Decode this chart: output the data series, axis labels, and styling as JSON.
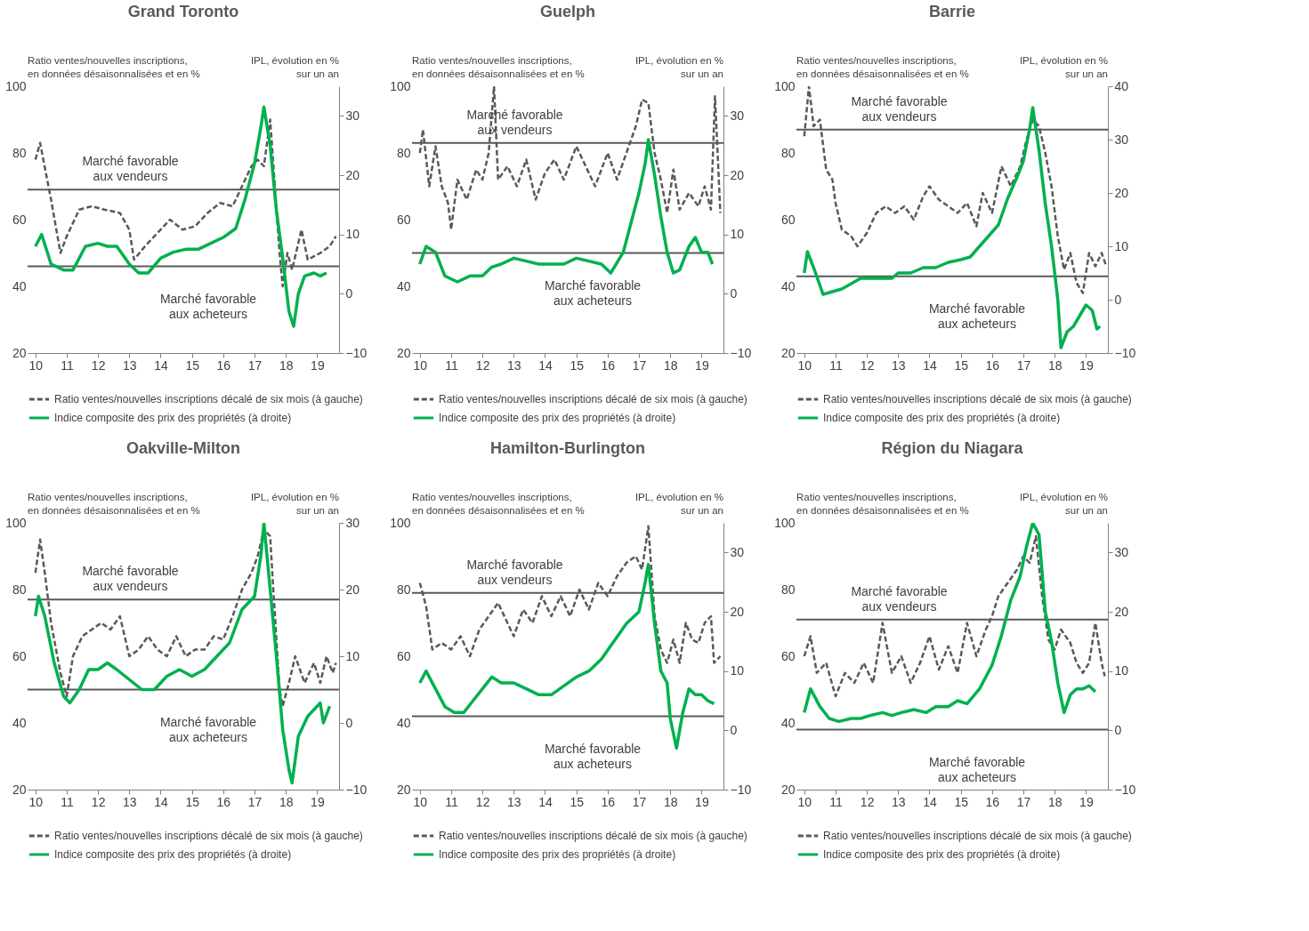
{
  "chart_data": [
    {
      "type": "line",
      "title": "Grand Toronto",
      "ylabel": "Ratio ventes/nouvelles inscriptions, en données désaisonnalisées et en %",
      "y2label": "IPL, évolution en % sur un an",
      "xlim": [
        9.75,
        19.7
      ],
      "xticks": [
        10,
        11,
        12,
        13,
        14,
        15,
        16,
        17,
        18,
        19
      ],
      "ylim": [
        20,
        100
      ],
      "yticks": [
        20,
        40,
        60,
        80,
        100
      ],
      "y2lim": [
        -10,
        35
      ],
      "y2ticks": [
        -10,
        0,
        10,
        20,
        30
      ],
      "legend": "bottom",
      "ref_lines": [
        {
          "axis": "y",
          "value": 69,
          "label": "Marché favorable aux vendeurs",
          "color": "#595959"
        },
        {
          "axis": "y",
          "value": 46,
          "label": "Marché favorable aux acheteurs",
          "color": "#595959"
        }
      ],
      "series": [
        {
          "name": "Ratio ventes/nouvelles inscriptions décalé de six mois (à gauche)",
          "color": "#595959",
          "line_style": "dashed",
          "x": [
            10.0,
            10.15,
            10.5,
            10.8,
            11.0,
            11.4,
            11.8,
            12.2,
            12.7,
            13.0,
            13.15,
            13.5,
            13.9,
            14.3,
            14.7,
            15.1,
            15.5,
            15.9,
            16.3,
            16.6,
            16.9,
            17.1,
            17.3,
            17.5,
            17.65,
            17.8,
            17.9,
            18.05,
            18.2,
            18.5,
            18.7,
            19.1,
            19.4,
            19.6
          ],
          "values": [
            78,
            83,
            66,
            50,
            55,
            63,
            64,
            63,
            62,
            57,
            48,
            52,
            56,
            60,
            57,
            58,
            62,
            65,
            64,
            70,
            76,
            78,
            76,
            90,
            70,
            50,
            40,
            50,
            45,
            57,
            48,
            50,
            52,
            55
          ]
        },
        {
          "name": "Indice composite des prix des propriétés (à droite)",
          "color": "#00b050",
          "line_style": "solid",
          "axis": "y2",
          "x": [
            10.0,
            10.2,
            10.5,
            10.9,
            11.2,
            11.6,
            12.0,
            12.3,
            12.6,
            13.0,
            13.3,
            13.6,
            14.0,
            14.4,
            14.8,
            15.2,
            15.6,
            16.0,
            16.4,
            16.7,
            17.0,
            17.2,
            17.3,
            17.5,
            17.7,
            17.9,
            18.1,
            18.25,
            18.4,
            18.6,
            18.9,
            19.1,
            19.3
          ],
          "values": [
            8,
            10,
            5,
            4,
            4,
            8,
            8.5,
            8,
            8,
            5,
            3.5,
            3.5,
            6,
            7,
            7.5,
            7.5,
            8.5,
            9.5,
            11,
            16,
            22,
            28,
            31.5,
            25,
            14,
            6,
            -3,
            -5.5,
            0,
            3,
            3.5,
            3,
            3.5
          ]
        }
      ]
    },
    {
      "type": "line",
      "title": "Guelph",
      "ylabel": "Ratio ventes/nouvelles inscriptions, en données désaisonnalisées et en %",
      "y2label": "IPL, évolution en % sur un an",
      "xlim": [
        9.75,
        19.7
      ],
      "xticks": [
        10,
        11,
        12,
        13,
        14,
        15,
        16,
        17,
        18,
        19
      ],
      "ylim": [
        20,
        100
      ],
      "yticks": [
        20,
        40,
        60,
        80,
        100
      ],
      "y2lim": [
        -10,
        35
      ],
      "y2ticks": [
        -10,
        0,
        10,
        20,
        30
      ],
      "legend": "bottom",
      "ref_lines": [
        {
          "axis": "y",
          "value": 83,
          "label": "Marché favorable aux vendeurs",
          "color": "#595959"
        },
        {
          "axis": "y",
          "value": 50,
          "label": "Marché favorable aux acheteurs",
          "color": "#595959"
        }
      ],
      "series": [
        {
          "name": "Ratio ventes/nouvelles inscriptions décalé de six mois (à gauche)",
          "color": "#595959",
          "line_style": "dashed",
          "x": [
            10.0,
            10.1,
            10.3,
            10.5,
            10.7,
            10.9,
            11.0,
            11.2,
            11.5,
            11.8,
            12.0,
            12.2,
            12.37,
            12.5,
            12.8,
            13.1,
            13.4,
            13.7,
            14.0,
            14.3,
            14.6,
            15.0,
            15.3,
            15.6,
            16.0,
            16.3,
            16.6,
            16.9,
            17.1,
            17.3,
            17.5,
            17.7,
            17.9,
            18.1,
            18.3,
            18.6,
            18.9,
            19.1,
            19.3,
            19.43,
            19.6
          ],
          "values": [
            80,
            87,
            70,
            82,
            70,
            65,
            57,
            72,
            66,
            75,
            72,
            80,
            100,
            72,
            76,
            70,
            78,
            66,
            74,
            78,
            72,
            82,
            76,
            70,
            80,
            72,
            80,
            88,
            96,
            95,
            80,
            72,
            62,
            75,
            63,
            68,
            64,
            70,
            63,
            97,
            62
          ]
        },
        {
          "name": "Indice composite des prix des propriétés (à droite)",
          "color": "#00b050",
          "line_style": "solid",
          "axis": "y2",
          "x": [
            10.0,
            10.2,
            10.5,
            10.8,
            11.2,
            11.6,
            12.0,
            12.3,
            12.6,
            13.0,
            13.4,
            13.8,
            14.2,
            14.6,
            15.0,
            15.4,
            15.8,
            16.1,
            16.5,
            16.8,
            17.0,
            17.2,
            17.3,
            17.5,
            17.7,
            17.9,
            18.1,
            18.3,
            18.6,
            18.8,
            19.0,
            19.2,
            19.35
          ],
          "values": [
            5,
            8,
            7,
            3,
            2,
            3,
            3,
            4.5,
            5,
            6,
            5.5,
            5,
            5,
            5,
            6,
            5.5,
            5,
            3.5,
            7,
            13,
            17,
            22,
            26,
            20,
            13,
            7,
            3.5,
            4,
            8,
            9.5,
            7,
            7,
            5
          ]
        }
      ]
    },
    {
      "type": "line",
      "title": "Barrie",
      "ylabel": "Ratio ventes/nouvelles inscriptions, en données désaisonnalisées et en %",
      "y2label": "IPL, évolution en % sur un an",
      "xlim": [
        9.75,
        19.7
      ],
      "xticks": [
        10,
        11,
        12,
        13,
        14,
        15,
        16,
        17,
        18,
        19
      ],
      "ylim": [
        20,
        100
      ],
      "yticks": [
        20,
        40,
        60,
        80,
        100
      ],
      "y2lim": [
        -10,
        40
      ],
      "y2ticks": [
        -10,
        0,
        10,
        20,
        30,
        40
      ],
      "legend": "bottom",
      "ref_lines": [
        {
          "axis": "y",
          "value": 87,
          "label": "Marché favorable aux vendeurs",
          "color": "#595959"
        },
        {
          "axis": "y",
          "value": 43,
          "label": "Marché favorable aux acheteurs",
          "color": "#595959"
        }
      ],
      "series": [
        {
          "name": "Ratio ventes/nouvelles inscriptions décalé de six mois (à gauche)",
          "color": "#595959",
          "line_style": "dashed",
          "x": [
            10.0,
            10.15,
            10.3,
            10.5,
            10.7,
            10.9,
            11.0,
            11.2,
            11.5,
            11.7,
            12.0,
            12.3,
            12.6,
            12.9,
            13.2,
            13.5,
            13.8,
            14.0,
            14.3,
            14.6,
            14.9,
            15.2,
            15.5,
            15.7,
            16.0,
            16.3,
            16.6,
            16.9,
            17.1,
            17.3,
            17.5,
            17.7,
            17.9,
            18.1,
            18.3,
            18.5,
            18.7,
            18.9,
            19.1,
            19.3,
            19.5,
            19.65
          ],
          "values": [
            85,
            100,
            88,
            90,
            75,
            72,
            65,
            57,
            55,
            52,
            56,
            62,
            64,
            62,
            64,
            60,
            67,
            70,
            66,
            64,
            62,
            65,
            58,
            68,
            62,
            76,
            70,
            76,
            84,
            90,
            88,
            80,
            70,
            55,
            45,
            50,
            41,
            38,
            50,
            46,
            50,
            46
          ]
        },
        {
          "name": "Indice composite des prix des propriétés (à droite)",
          "color": "#00b050",
          "line_style": "solid",
          "axis": "y2",
          "x": [
            10.0,
            10.1,
            10.3,
            10.6,
            10.9,
            11.2,
            11.5,
            11.8,
            12.1,
            12.5,
            12.8,
            13.0,
            13.4,
            13.8,
            14.2,
            14.6,
            15.0,
            15.3,
            15.6,
            15.9,
            16.2,
            16.5,
            16.8,
            17.0,
            17.2,
            17.3,
            17.5,
            17.7,
            17.9,
            18.1,
            18.2,
            18.4,
            18.6,
            18.8,
            19.0,
            19.2,
            19.35,
            19.45
          ],
          "values": [
            5,
            9,
            6,
            1,
            1.5,
            2,
            3,
            4,
            4,
            4,
            4,
            5,
            5,
            6,
            6,
            7,
            7.5,
            8,
            10,
            12,
            14,
            19,
            23,
            26,
            32,
            36,
            28,
            18,
            10,
            0,
            -9,
            -6,
            -5,
            -3,
            -1,
            -2,
            -5.5,
            -5
          ]
        }
      ]
    },
    {
      "type": "line",
      "title": "Oakville-Milton",
      "ylabel": "Ratio ventes/nouvelles inscriptions, en données désaisonnalisées et en %",
      "y2label": "IPL, évolution en % sur un an",
      "xlim": [
        9.75,
        19.7
      ],
      "xticks": [
        10,
        11,
        12,
        13,
        14,
        15,
        16,
        17,
        18,
        19
      ],
      "ylim": [
        20,
        100
      ],
      "yticks": [
        20,
        40,
        60,
        80,
        100
      ],
      "y2lim": [
        -10,
        30
      ],
      "y2ticks": [
        -10,
        0,
        10,
        20,
        30
      ],
      "legend": "bottom",
      "ref_lines": [
        {
          "axis": "y",
          "value": 77,
          "label": "Marché favorable aux vendeurs",
          "color": "#595959"
        },
        {
          "axis": "y",
          "value": 50,
          "label": "Marché favorable aux acheteurs",
          "color": "#595959"
        }
      ],
      "series": [
        {
          "name": "Ratio ventes/nouvelles inscriptions décalé de six mois (à gauche)",
          "color": "#595959",
          "line_style": "dashed",
          "x": [
            10.0,
            10.15,
            10.3,
            10.5,
            10.8,
            11.0,
            11.2,
            11.5,
            11.8,
            12.1,
            12.4,
            12.7,
            13.0,
            13.3,
            13.6,
            13.9,
            14.2,
            14.5,
            14.8,
            15.1,
            15.4,
            15.7,
            16.0,
            16.3,
            16.6,
            16.9,
            17.1,
            17.3,
            17.5,
            17.6,
            17.8,
            17.9,
            18.1,
            18.3,
            18.6,
            18.9,
            19.1,
            19.3,
            19.5,
            19.6
          ],
          "values": [
            85,
            95,
            85,
            70,
            55,
            48,
            60,
            66,
            68,
            70,
            68,
            72,
            60,
            62,
            66,
            62,
            60,
            66,
            60,
            62,
            62,
            66,
            65,
            72,
            80,
            85,
            90,
            98,
            96,
            80,
            50,
            45,
            52,
            60,
            52,
            58,
            52,
            60,
            55,
            58
          ]
        },
        {
          "name": "Indice composite des prix des propriétés (à droite)",
          "color": "#00b050",
          "line_style": "solid",
          "axis": "y2",
          "x": [
            10.0,
            10.1,
            10.3,
            10.6,
            10.9,
            11.1,
            11.4,
            11.7,
            12.0,
            12.3,
            12.6,
            13.0,
            13.4,
            13.8,
            14.2,
            14.6,
            15.0,
            15.4,
            15.8,
            16.2,
            16.6,
            17.0,
            17.2,
            17.3,
            17.5,
            17.7,
            17.9,
            18.1,
            18.2,
            18.4,
            18.7,
            18.9,
            19.1,
            19.2,
            19.4
          ],
          "values": [
            16,
            19,
            16,
            9,
            4,
            3,
            5,
            8,
            8,
            9,
            8,
            6.5,
            5,
            5,
            7,
            8,
            7,
            8,
            10,
            12,
            17,
            19,
            25,
            30,
            20,
            10,
            -1,
            -7,
            -9,
            -2,
            1,
            2,
            3,
            0,
            2.5
          ]
        }
      ]
    },
    {
      "type": "line",
      "title": "Hamilton-Burlington",
      "ylabel": "Ratio ventes/nouvelles inscriptions, en données désaisonnalisées et en %",
      "y2label": "IPL, évolution en % sur un an",
      "xlim": [
        9.75,
        19.7
      ],
      "xticks": [
        10,
        11,
        12,
        13,
        14,
        15,
        16,
        17,
        18,
        19
      ],
      "ylim": [
        20,
        100
      ],
      "yticks": [
        20,
        40,
        60,
        80,
        100
      ],
      "y2lim": [
        -10,
        35
      ],
      "y2ticks": [
        -10,
        0,
        10,
        20,
        30
      ],
      "legend": "bottom",
      "ref_lines": [
        {
          "axis": "y",
          "value": 79,
          "label": "Marché favorable aux vendeurs",
          "color": "#595959"
        },
        {
          "axis": "y",
          "value": 42,
          "label": "Marché favorable aux acheteurs",
          "color": "#595959"
        }
      ],
      "series": [
        {
          "name": "Ratio ventes/nouvelles inscriptions décalé de six mois (à gauche)",
          "color": "#595959",
          "line_style": "dashed",
          "x": [
            10.0,
            10.2,
            10.4,
            10.7,
            11.0,
            11.3,
            11.6,
            11.9,
            12.2,
            12.5,
            12.8,
            13.0,
            13.3,
            13.6,
            13.9,
            14.2,
            14.5,
            14.8,
            15.1,
            15.4,
            15.7,
            16.0,
            16.3,
            16.6,
            16.9,
            17.1,
            17.3,
            17.5,
            17.7,
            17.9,
            18.1,
            18.3,
            18.5,
            18.7,
            18.9,
            19.1,
            19.3,
            19.4,
            19.6
          ],
          "values": [
            82,
            75,
            62,
            64,
            62,
            66,
            60,
            68,
            72,
            76,
            70,
            66,
            74,
            70,
            78,
            72,
            78,
            72,
            80,
            74,
            82,
            78,
            84,
            88,
            90,
            86,
            99,
            72,
            62,
            58,
            65,
            58,
            70,
            65,
            64,
            70,
            72,
            58,
            60
          ]
        },
        {
          "name": "Indice composite des prix des propriétés (à droite)",
          "color": "#00b050",
          "line_style": "solid",
          "axis": "y2",
          "x": [
            10.0,
            10.2,
            10.5,
            10.8,
            11.1,
            11.4,
            11.7,
            12.0,
            12.3,
            12.6,
            13.0,
            13.4,
            13.8,
            14.2,
            14.6,
            15.0,
            15.4,
            15.8,
            16.2,
            16.6,
            17.0,
            17.2,
            17.3,
            17.5,
            17.7,
            17.9,
            18.0,
            18.2,
            18.4,
            18.6,
            18.8,
            19.0,
            19.2,
            19.4
          ],
          "values": [
            8,
            10,
            7,
            4,
            3,
            3,
            5,
            7,
            9,
            8,
            8,
            7,
            6,
            6,
            7.5,
            9,
            10,
            12,
            15,
            18,
            20,
            25,
            28,
            18,
            10,
            8,
            2,
            -3,
            3,
            7,
            6,
            6,
            5,
            4.5
          ]
        }
      ]
    },
    {
      "type": "line",
      "title": "Région du Niagara",
      "ylabel": "Ratio ventes/nouvelles inscriptions, en données désaisonnalisées et en %",
      "y2label": "IPL, évolution en % sur un an",
      "xlim": [
        9.75,
        19.7
      ],
      "xticks": [
        10,
        11,
        12,
        13,
        14,
        15,
        16,
        17,
        18,
        19
      ],
      "ylim": [
        20,
        100
      ],
      "yticks": [
        20,
        40,
        60,
        80,
        100
      ],
      "y2lim": [
        -10,
        35
      ],
      "y2ticks": [
        -10,
        0,
        10,
        20,
        30
      ],
      "legend": "bottom",
      "ref_lines": [
        {
          "axis": "y",
          "value": 71,
          "label": "Marché favorable aux vendeurs",
          "color": "#595959"
        },
        {
          "axis": "y",
          "value": 38,
          "label": "Marché favorable aux acheteurs",
          "color": "#595959"
        }
      ],
      "series": [
        {
          "name": "Ratio ventes/nouvelles inscriptions décalé de six mois (à gauche)",
          "color": "#595959",
          "line_style": "dashed",
          "x": [
            10.0,
            10.2,
            10.4,
            10.7,
            11.0,
            11.3,
            11.6,
            11.9,
            12.2,
            12.5,
            12.8,
            13.1,
            13.4,
            13.7,
            14.0,
            14.3,
            14.6,
            14.9,
            15.2,
            15.5,
            15.8,
            16.0,
            16.2,
            16.5,
            16.8,
            17.0,
            17.2,
            17.4,
            17.6,
            17.8,
            18.0,
            18.2,
            18.5,
            18.7,
            18.9,
            19.1,
            19.3,
            19.5,
            19.6
          ],
          "values": [
            60,
            66,
            55,
            58,
            48,
            55,
            52,
            58,
            52,
            70,
            55,
            60,
            52,
            58,
            66,
            56,
            63,
            55,
            70,
            60,
            68,
            72,
            78,
            82,
            86,
            90,
            88,
            96,
            78,
            65,
            62,
            68,
            64,
            58,
            55,
            58,
            70,
            58,
            54
          ]
        },
        {
          "name": "Indice composite des prix des propriétés (à droite)",
          "color": "#00b050",
          "line_style": "solid",
          "axis": "y2",
          "x": [
            10.0,
            10.2,
            10.5,
            10.8,
            11.1,
            11.5,
            11.8,
            12.1,
            12.5,
            12.8,
            13.1,
            13.5,
            13.9,
            14.2,
            14.6,
            14.9,
            15.2,
            15.6,
            16.0,
            16.3,
            16.6,
            16.9,
            17.1,
            17.3,
            17.5,
            17.7,
            17.9,
            18.1,
            18.3,
            18.5,
            18.7,
            18.9,
            19.1,
            19.3
          ],
          "values": [
            3,
            7,
            4,
            2,
            1.5,
            2,
            2,
            2.5,
            3,
            2.5,
            3,
            3.5,
            3,
            4,
            4,
            5,
            4.5,
            7,
            11,
            16,
            22,
            26,
            31,
            35,
            33,
            20,
            15,
            8,
            3,
            6,
            7,
            7,
            7.5,
            6.5
          ]
        }
      ]
    }
  ]
}
